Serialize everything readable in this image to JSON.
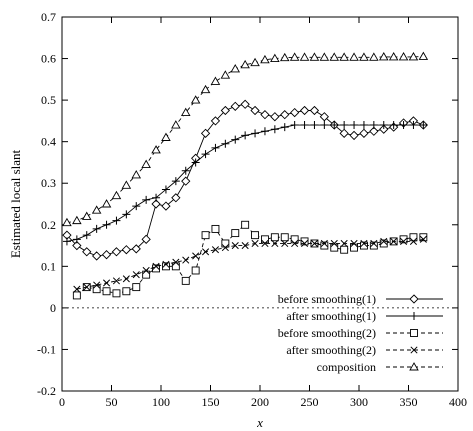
{
  "chart_data": {
    "type": "line",
    "xlabel": "x",
    "ylabel": "Estimated local slant",
    "xlim": [
      0,
      400
    ],
    "ylim": [
      -0.2,
      0.7
    ],
    "xticks": [
      0,
      50,
      100,
      150,
      200,
      250,
      300,
      350,
      400
    ],
    "yticks": [
      -0.2,
      -0.1,
      0,
      0.1,
      0.2,
      0.3,
      0.4,
      0.5,
      0.6,
      0.7
    ],
    "grid": false,
    "legend_position": "bottom-right",
    "zero_line": true,
    "series": [
      {
        "name": "before smoothing(1)",
        "marker": "diamond",
        "line": "solid",
        "x": [
          5,
          15,
          25,
          35,
          45,
          55,
          65,
          75,
          85,
          95,
          105,
          115,
          125,
          135,
          145,
          155,
          165,
          175,
          185,
          195,
          205,
          215,
          225,
          235,
          245,
          255,
          265,
          275,
          285,
          295,
          305,
          315,
          325,
          335,
          345,
          355,
          365
        ],
        "y": [
          0.175,
          0.15,
          0.135,
          0.125,
          0.128,
          0.135,
          0.14,
          0.142,
          0.165,
          0.25,
          0.245,
          0.265,
          0.305,
          0.36,
          0.42,
          0.45,
          0.475,
          0.485,
          0.49,
          0.475,
          0.465,
          0.46,
          0.465,
          0.47,
          0.475,
          0.475,
          0.46,
          0.44,
          0.42,
          0.415,
          0.42,
          0.425,
          0.43,
          0.435,
          0.445,
          0.45,
          0.44
        ]
      },
      {
        "name": "after smoothing(1)",
        "marker": "plus",
        "line": "solid",
        "x": [
          5,
          15,
          25,
          35,
          45,
          55,
          65,
          75,
          85,
          95,
          105,
          115,
          125,
          135,
          145,
          155,
          165,
          175,
          185,
          195,
          205,
          215,
          225,
          235,
          245,
          255,
          265,
          275,
          285,
          295,
          305,
          315,
          325,
          335,
          345,
          355,
          365
        ],
        "y": [
          0.16,
          0.165,
          0.175,
          0.19,
          0.2,
          0.21,
          0.225,
          0.245,
          0.26,
          0.265,
          0.285,
          0.305,
          0.33,
          0.35,
          0.37,
          0.385,
          0.395,
          0.405,
          0.415,
          0.42,
          0.425,
          0.43,
          0.435,
          0.44,
          0.44,
          0.44,
          0.44,
          0.44,
          0.44,
          0.44,
          0.44,
          0.44,
          0.44,
          0.44,
          0.44,
          0.44,
          0.44
        ]
      },
      {
        "name": "before smoothing(2)",
        "marker": "square",
        "line": "dashed",
        "x": [
          15,
          25,
          35,
          45,
          55,
          65,
          75,
          85,
          95,
          105,
          115,
          125,
          135,
          145,
          155,
          165,
          175,
          185,
          195,
          205,
          215,
          225,
          235,
          245,
          255,
          265,
          275,
          285,
          295,
          305,
          315,
          325,
          335,
          345,
          355,
          365
        ],
        "y": [
          0.03,
          0.05,
          0.045,
          0.04,
          0.035,
          0.04,
          0.05,
          0.08,
          0.095,
          0.1,
          0.1,
          0.065,
          0.09,
          0.175,
          0.19,
          0.155,
          0.18,
          0.2,
          0.175,
          0.165,
          0.17,
          0.17,
          0.165,
          0.16,
          0.155,
          0.15,
          0.145,
          0.14,
          0.145,
          0.15,
          0.15,
          0.155,
          0.16,
          0.165,
          0.17,
          0.17
        ]
      },
      {
        "name": "after smoothing(2)",
        "marker": "x",
        "line": "dashed",
        "x": [
          15,
          25,
          35,
          45,
          55,
          65,
          75,
          85,
          95,
          105,
          115,
          125,
          135,
          145,
          155,
          165,
          175,
          185,
          195,
          205,
          215,
          225,
          235,
          245,
          255,
          265,
          275,
          285,
          295,
          305,
          315,
          325,
          335,
          345,
          355,
          365
        ],
        "y": [
          0.045,
          0.05,
          0.055,
          0.06,
          0.065,
          0.07,
          0.08,
          0.09,
          0.1,
          0.105,
          0.11,
          0.115,
          0.125,
          0.135,
          0.14,
          0.145,
          0.15,
          0.15,
          0.155,
          0.155,
          0.155,
          0.155,
          0.155,
          0.155,
          0.155,
          0.155,
          0.155,
          0.155,
          0.155,
          0.155,
          0.155,
          0.16,
          0.16,
          0.16,
          0.16,
          0.165
        ]
      },
      {
        "name": "composition",
        "marker": "triangle",
        "line": "dashed",
        "x": [
          5,
          15,
          25,
          35,
          45,
          55,
          65,
          75,
          85,
          95,
          105,
          115,
          125,
          135,
          145,
          155,
          165,
          175,
          185,
          195,
          205,
          215,
          225,
          235,
          245,
          255,
          265,
          275,
          285,
          295,
          305,
          315,
          325,
          335,
          345,
          355,
          365
        ],
        "y": [
          0.205,
          0.21,
          0.22,
          0.235,
          0.25,
          0.27,
          0.295,
          0.32,
          0.345,
          0.38,
          0.41,
          0.44,
          0.47,
          0.5,
          0.525,
          0.545,
          0.56,
          0.575,
          0.585,
          0.59,
          0.597,
          0.6,
          0.602,
          0.603,
          0.603,
          0.603,
          0.603,
          0.603,
          0.603,
          0.603,
          0.603,
          0.603,
          0.604,
          0.604,
          0.604,
          0.604,
          0.605
        ]
      }
    ]
  }
}
